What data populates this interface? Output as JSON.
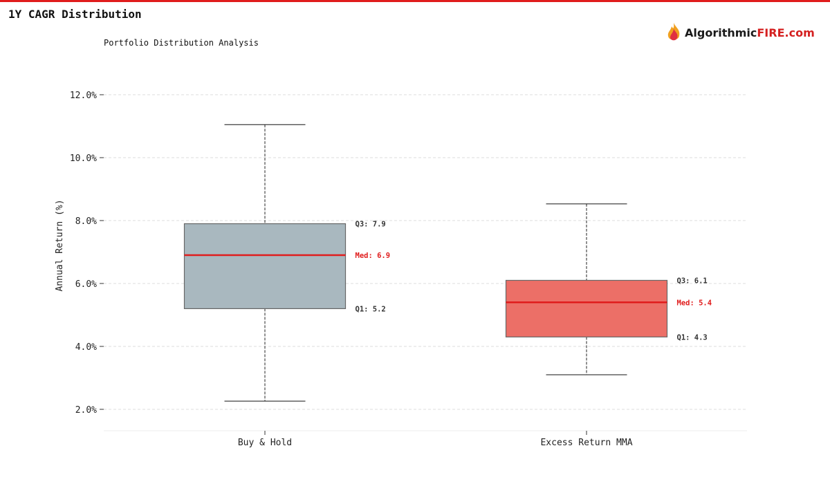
{
  "header": {
    "title": "1Y CAGR Distribution",
    "subtitle": "Portfolio Distribution Analysis",
    "logo_text_a": "Algorithmic",
    "logo_text_b": "FIRE.com"
  },
  "chart_data": {
    "type": "box",
    "title": "1Y CAGR Distribution",
    "subtitle": "Portfolio Distribution Analysis",
    "xlabel": "",
    "ylabel": "Annual Return (%)",
    "ylim": [
      1.33,
      13.0
    ],
    "yticks": [
      2,
      4,
      6,
      8,
      10,
      12
    ],
    "ytick_labels": [
      "2.0%",
      "4.0%",
      "6.0%",
      "8.0%",
      "10.0%",
      "12.0%"
    ],
    "grid": true,
    "categories": [
      "Buy & Hold",
      "Excess Return MMA"
    ],
    "series": [
      {
        "name": "Buy & Hold",
        "whisker_low": 2.26,
        "q1": 5.2,
        "median": 6.9,
        "q3": 7.9,
        "whisker_high": 11.05,
        "color": "#a9b8bf",
        "labels": {
          "q3": "Q3: 7.9",
          "median": "Med: 6.9",
          "q1": "Q1: 5.2"
        }
      },
      {
        "name": "Excess Return MMA",
        "whisker_low": 3.1,
        "q1": 4.3,
        "median": 5.4,
        "q3": 6.1,
        "whisker_high": 8.53,
        "color": "#ec6f67",
        "labels": {
          "q3": "Q3: 6.1",
          "median": "Med: 5.4",
          "q1": "Q1: 4.3"
        }
      }
    ],
    "median_color": "#e01c1c"
  }
}
